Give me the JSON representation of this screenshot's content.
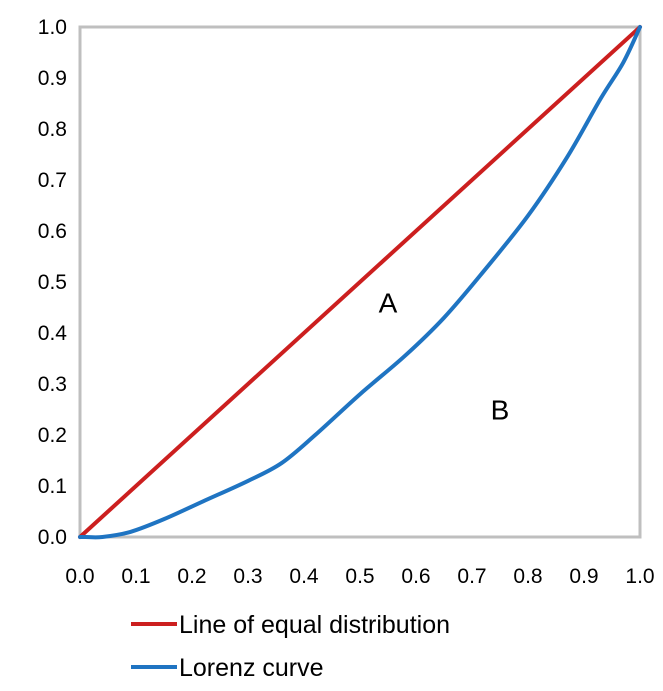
{
  "chart_data": {
    "type": "line",
    "title": "",
    "xlabel": "",
    "ylabel": "",
    "xlim": [
      0,
      1
    ],
    "ylim": [
      0,
      1
    ],
    "x_ticks": [
      "0.0",
      "0.1",
      "0.2",
      "0.3",
      "0.4",
      "0.5",
      "0.6",
      "0.7",
      "0.8",
      "0.9",
      "1.0"
    ],
    "y_ticks": [
      "0.0",
      "0.1",
      "0.2",
      "0.3",
      "0.4",
      "0.5",
      "0.6",
      "0.7",
      "0.8",
      "0.9",
      "1.0"
    ],
    "grid": false,
    "legend_position": "bottom",
    "series": [
      {
        "name": "Line of equal distribution",
        "color": "#cc1f1f",
        "x": [
          0,
          1
        ],
        "y": [
          0,
          1
        ]
      },
      {
        "name": "Lorenz curve",
        "color": "#1f74c2",
        "x": [
          0,
          0.01,
          0.04,
          0.09,
          0.15,
          0.22,
          0.3,
          0.36,
          0.42,
          0.5,
          0.58,
          0.65,
          0.72,
          0.8,
          0.87,
          0.93,
          0.97,
          1.0
        ],
        "y": [
          0,
          0,
          0,
          0.01,
          0.035,
          0.07,
          0.11,
          0.145,
          0.2,
          0.28,
          0.355,
          0.43,
          0.52,
          0.63,
          0.745,
          0.86,
          0.93,
          1.0
        ]
      }
    ],
    "annotations": [
      {
        "text": "A",
        "x": 0.55,
        "y": 0.44
      },
      {
        "text": "B",
        "x": 0.75,
        "y": 0.23
      }
    ]
  }
}
